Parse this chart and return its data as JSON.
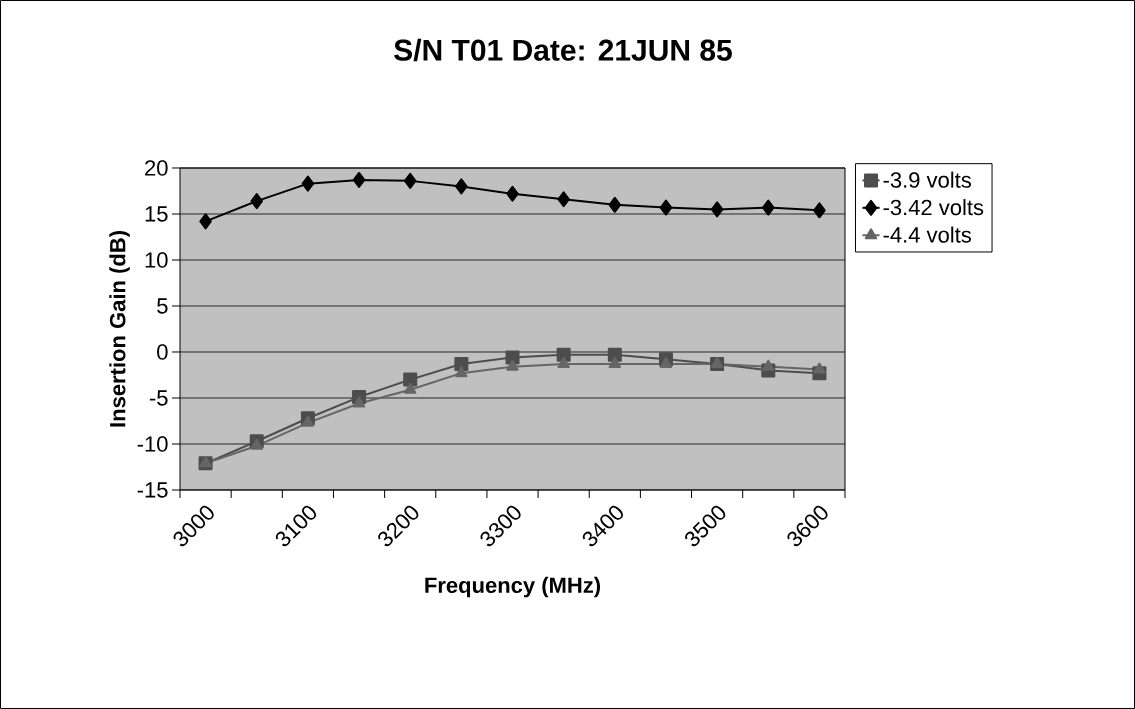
{
  "chart_data": {
    "type": "line",
    "title": "S/N T01    Date: 21JUN 85",
    "xlabel": "Frequency (MHz)",
    "ylabel": "Insertion Gain (dB)",
    "categories": [
      "3000",
      null,
      "3100",
      null,
      "3200",
      null,
      "3300",
      null,
      "3400",
      null,
      "3500",
      null,
      "3600"
    ],
    "series": [
      {
        "name": "-3.9 volts",
        "color": "#4d4d4d",
        "marker": "square",
        "values": [
          -12.1,
          -9.7,
          -7.2,
          -4.9,
          -3.0,
          -1.3,
          -0.6,
          -0.3,
          -0.3,
          -0.8,
          -1.3,
          -2.0,
          -2.3
        ]
      },
      {
        "name": "-3.42 volts",
        "color": "#000000",
        "marker": "diamond",
        "values": [
          14.2,
          16.4,
          18.3,
          18.7,
          18.6,
          18.0,
          17.2,
          16.6,
          16.0,
          15.7,
          15.5,
          15.7,
          15.4
        ]
      },
      {
        "name": "-4.4 volts",
        "color": "#666666",
        "marker": "triangle",
        "values": [
          -12.1,
          -10.2,
          -7.7,
          -5.6,
          -4.1,
          -2.3,
          -1.6,
          -1.3,
          -1.3,
          -1.3,
          -1.3,
          -1.6,
          -1.9
        ]
      }
    ],
    "ylim": [
      -15,
      20
    ],
    "yticks": [
      -15,
      -10,
      -5,
      0,
      5,
      10,
      15,
      20
    ],
    "grid": "y",
    "legend": "right",
    "line_style": "solid"
  }
}
